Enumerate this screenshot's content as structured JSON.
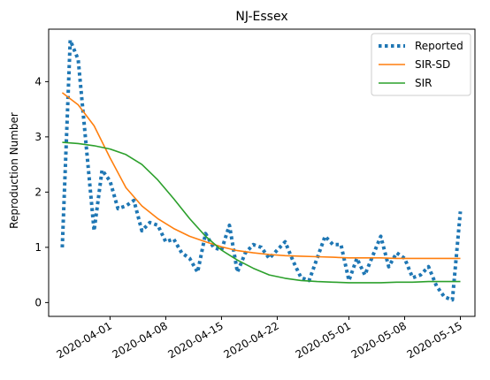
{
  "chart_data": {
    "type": "line",
    "title": "NJ-Essex",
    "xlabel": "",
    "ylabel": "Reproduction Number",
    "xlim": [
      "2020-03-24T07:00",
      "2020-05-16T20:00"
    ],
    "ylim": [
      -0.25,
      4.95
    ],
    "x_ticks": [
      "2020-04-01",
      "2020-04-08",
      "2020-04-15",
      "2020-04-22",
      "2020-05-01",
      "2020-05-08",
      "2020-05-15"
    ],
    "y_ticks": [
      0,
      1,
      2,
      3,
      4
    ],
    "grid": false,
    "legend_position": "top-right",
    "series": [
      {
        "name": "Reported",
        "style": "dotted",
        "color": "#1f77b4",
        "x": [
          "2020-03-26",
          "2020-03-27",
          "2020-03-28",
          "2020-03-29",
          "2020-03-30",
          "2020-03-31",
          "2020-04-01",
          "2020-04-02",
          "2020-04-03",
          "2020-04-04",
          "2020-04-05",
          "2020-04-06",
          "2020-04-07",
          "2020-04-08",
          "2020-04-09",
          "2020-04-10",
          "2020-04-11",
          "2020-04-12",
          "2020-04-13",
          "2020-04-14",
          "2020-04-15",
          "2020-04-16",
          "2020-04-17",
          "2020-04-18",
          "2020-04-19",
          "2020-04-20",
          "2020-04-21",
          "2020-04-22",
          "2020-04-23",
          "2020-04-24",
          "2020-04-25",
          "2020-04-26",
          "2020-04-27",
          "2020-04-28",
          "2020-04-29",
          "2020-04-30",
          "2020-05-01",
          "2020-05-02",
          "2020-05-03",
          "2020-05-04",
          "2020-05-05",
          "2020-05-06",
          "2020-05-07",
          "2020-05-08",
          "2020-05-09",
          "2020-05-10",
          "2020-05-11",
          "2020-05-12",
          "2020-05-13",
          "2020-05-14",
          "2020-05-15"
        ],
        "y": [
          1.0,
          4.75,
          4.4,
          2.85,
          1.3,
          2.4,
          2.2,
          1.7,
          1.75,
          1.85,
          1.3,
          1.45,
          1.4,
          1.1,
          1.15,
          0.9,
          0.8,
          0.55,
          1.25,
          1.0,
          0.95,
          1.4,
          0.55,
          0.9,
          1.05,
          1.0,
          0.8,
          0.95,
          1.1,
          0.75,
          0.45,
          0.4,
          0.8,
          1.2,
          1.05,
          1.05,
          0.4,
          0.8,
          0.5,
          0.85,
          1.2,
          0.65,
          0.9,
          0.8,
          0.45,
          0.5,
          0.65,
          0.3,
          0.1,
          0.05,
          1.65
        ]
      },
      {
        "name": "SIR-SD",
        "style": "solid",
        "color": "#ff7f0e",
        "x": [
          "2020-03-26",
          "2020-03-28",
          "2020-03-30",
          "2020-04-01",
          "2020-04-03",
          "2020-04-05",
          "2020-04-07",
          "2020-04-09",
          "2020-04-11",
          "2020-04-13",
          "2020-04-15",
          "2020-04-17",
          "2020-04-19",
          "2020-04-21",
          "2020-04-23",
          "2020-04-25",
          "2020-04-27",
          "2020-04-29",
          "2020-05-01",
          "2020-05-03",
          "2020-05-05",
          "2020-05-07",
          "2020-05-09",
          "2020-05-11",
          "2020-05-13",
          "2020-05-15"
        ],
        "y": [
          3.8,
          3.58,
          3.2,
          2.62,
          2.08,
          1.75,
          1.52,
          1.34,
          1.2,
          1.1,
          1.01,
          0.94,
          0.9,
          0.87,
          0.85,
          0.84,
          0.83,
          0.82,
          0.81,
          0.81,
          0.81,
          0.8,
          0.8,
          0.8,
          0.8,
          0.8
        ]
      },
      {
        "name": "SIR",
        "style": "solid",
        "color": "#2ca02c",
        "x": [
          "2020-03-26",
          "2020-03-28",
          "2020-03-30",
          "2020-04-01",
          "2020-04-03",
          "2020-04-05",
          "2020-04-07",
          "2020-04-09",
          "2020-04-11",
          "2020-04-13",
          "2020-04-15",
          "2020-04-17",
          "2020-04-19",
          "2020-04-21",
          "2020-04-23",
          "2020-04-25",
          "2020-04-27",
          "2020-04-29",
          "2020-05-01",
          "2020-05-03",
          "2020-05-05",
          "2020-05-07",
          "2020-05-09",
          "2020-05-11",
          "2020-05-13",
          "2020-05-15"
        ],
        "y": [
          2.9,
          2.88,
          2.84,
          2.78,
          2.68,
          2.5,
          2.22,
          1.88,
          1.52,
          1.2,
          0.95,
          0.77,
          0.62,
          0.5,
          0.44,
          0.4,
          0.38,
          0.37,
          0.36,
          0.36,
          0.36,
          0.37,
          0.37,
          0.38,
          0.38,
          0.38
        ]
      }
    ]
  }
}
